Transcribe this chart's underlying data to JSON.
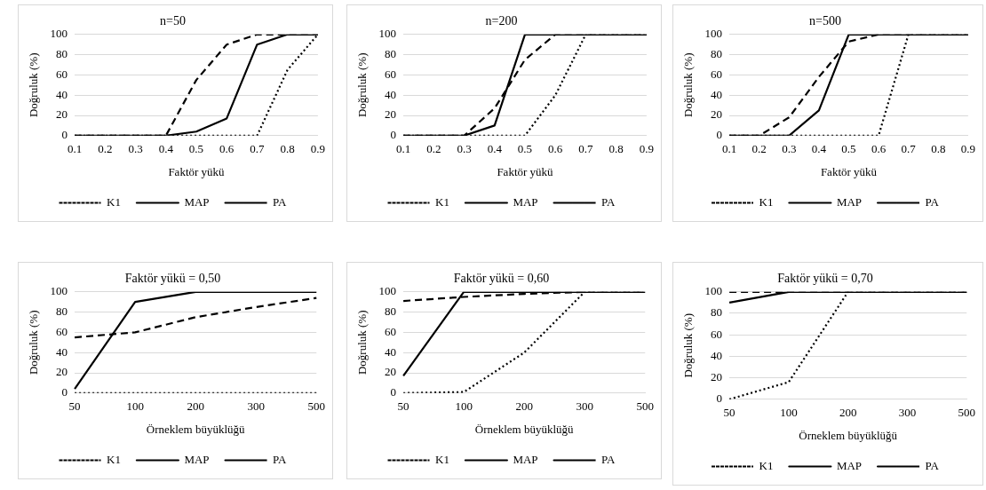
{
  "chart_data": [
    {
      "type": "line",
      "title": "n=50",
      "xlabel": "Faktör yükü",
      "ylabel": "Doğruluk (%)",
      "categories": [
        "0.1",
        "0.2",
        "0.3",
        "0.4",
        "0.5",
        "0.6",
        "0.7",
        "0.8",
        "0.9"
      ],
      "ylim": [
        0,
        100
      ],
      "yticks": [
        0,
        20,
        40,
        60,
        80,
        100
      ],
      "grid": "y",
      "legend": "bottom",
      "marker": "none",
      "series": [
        {
          "name": "K1",
          "color": "#000000",
          "line_style": "dotted",
          "values": [
            0,
            0,
            0,
            0,
            0,
            0,
            0,
            65,
            100
          ]
        },
        {
          "name": "MAP",
          "color": "#000000",
          "line_style": "solid",
          "values": [
            0,
            0,
            0,
            0,
            4,
            17,
            90,
            100,
            100
          ]
        },
        {
          "name": "PA",
          "color": "#000000",
          "line_style": "dashed",
          "values": [
            0,
            0,
            0,
            0,
            55,
            90,
            100,
            100,
            100
          ]
        }
      ]
    },
    {
      "type": "line",
      "title": "n=200",
      "xlabel": "Faktör yükü",
      "ylabel": "Doğruluk (%)",
      "categories": [
        "0.1",
        "0.2",
        "0.3",
        "0.4",
        "0.5",
        "0.6",
        "0.7",
        "0.8",
        "0.9"
      ],
      "ylim": [
        0,
        100
      ],
      "yticks": [
        0,
        20,
        40,
        60,
        80,
        100
      ],
      "grid": "y",
      "legend": "bottom",
      "marker": "none",
      "series": [
        {
          "name": "K1",
          "color": "#000000",
          "line_style": "dotted",
          "values": [
            0,
            0,
            0,
            0,
            0,
            40,
            100,
            100,
            100
          ]
        },
        {
          "name": "MAP",
          "color": "#000000",
          "line_style": "solid",
          "values": [
            0,
            0,
            0,
            10,
            100,
            100,
            100,
            100,
            100
          ]
        },
        {
          "name": "PA",
          "color": "#000000",
          "line_style": "dashed",
          "values": [
            0,
            0,
            0,
            27,
            75,
            100,
            100,
            100,
            100
          ]
        }
      ]
    },
    {
      "type": "line",
      "title": "n=500",
      "xlabel": "Faktör yükü",
      "ylabel": "Doğruluk (%)",
      "categories": [
        "0.1",
        "0.2",
        "0.3",
        "0.4",
        "0.5",
        "0.6",
        "0.7",
        "0.8",
        "0.9"
      ],
      "ylim": [
        0,
        100
      ],
      "yticks": [
        0,
        20,
        40,
        60,
        80,
        100
      ],
      "grid": "y",
      "legend": "bottom",
      "marker": "none",
      "series": [
        {
          "name": "K1",
          "color": "#000000",
          "line_style": "dotted",
          "values": [
            0,
            0,
            0,
            0,
            0,
            0,
            100,
            100,
            100
          ]
        },
        {
          "name": "MAP",
          "color": "#000000",
          "line_style": "solid",
          "values": [
            0,
            0,
            0,
            25,
            100,
            100,
            100,
            100,
            100
          ]
        },
        {
          "name": "PA",
          "color": "#000000",
          "line_style": "dashed",
          "values": [
            0,
            0,
            18,
            58,
            93,
            100,
            100,
            100,
            100
          ]
        }
      ]
    },
    {
      "type": "line",
      "title": "Faktör yükü = 0,50",
      "xlabel": "Örneklem büyüklüğü",
      "ylabel": "Doğruluk (%)",
      "categories": [
        "50",
        "100",
        "200",
        "300",
        "500"
      ],
      "ylim": [
        0,
        100
      ],
      "yticks": [
        0,
        20,
        40,
        60,
        80,
        100
      ],
      "grid": "y",
      "legend": "bottom",
      "marker": "none",
      "series": [
        {
          "name": "K1",
          "color": "#000000",
          "line_style": "dotted",
          "values": [
            0,
            0,
            0,
            0,
            0
          ]
        },
        {
          "name": "MAP",
          "color": "#000000",
          "line_style": "solid",
          "values": [
            4,
            90,
            100,
            100,
            100
          ]
        },
        {
          "name": "PA",
          "color": "#000000",
          "line_style": "dashed",
          "values": [
            55,
            60,
            75,
            85,
            94
          ]
        }
      ]
    },
    {
      "type": "line",
      "title": "Faktör yükü = 0,60",
      "xlabel": "Örneklem büyüklüğü",
      "ylabel": "Doğruluk (%)",
      "categories": [
        "50",
        "100",
        "200",
        "300",
        "500"
      ],
      "ylim": [
        0,
        100
      ],
      "yticks": [
        0,
        20,
        40,
        60,
        80,
        100
      ],
      "grid": "y",
      "legend": "bottom",
      "marker": "none",
      "series": [
        {
          "name": "K1",
          "color": "#000000",
          "line_style": "dotted",
          "values": [
            0,
            1,
            40,
            100,
            100
          ]
        },
        {
          "name": "MAP",
          "color": "#000000",
          "line_style": "solid",
          "values": [
            17,
            100,
            100,
            100,
            100
          ]
        },
        {
          "name": "PA",
          "color": "#000000",
          "line_style": "dashed",
          "values": [
            91,
            95,
            98,
            100,
            100
          ]
        }
      ]
    },
    {
      "type": "line",
      "title": "Faktör yükü = 0,70",
      "xlabel": "Örneklem büyüklüğü",
      "ylabel": "Doğruluk (%)",
      "categories": [
        "50",
        "100",
        "200",
        "300",
        "500"
      ],
      "ylim": [
        0,
        100
      ],
      "yticks": [
        0,
        20,
        40,
        60,
        80,
        100
      ],
      "grid": "y",
      "legend": "bottom",
      "marker": "none",
      "series": [
        {
          "name": "K1",
          "color": "#000000",
          "line_style": "dotted",
          "values": [
            0,
            16,
            100,
            100,
            100
          ]
        },
        {
          "name": "MAP",
          "color": "#000000",
          "line_style": "solid",
          "values": [
            90,
            100,
            100,
            100,
            100
          ]
        },
        {
          "name": "PA",
          "color": "#000000",
          "line_style": "dashed",
          "values": [
            100,
            100,
            100,
            100,
            100
          ]
        }
      ]
    }
  ]
}
